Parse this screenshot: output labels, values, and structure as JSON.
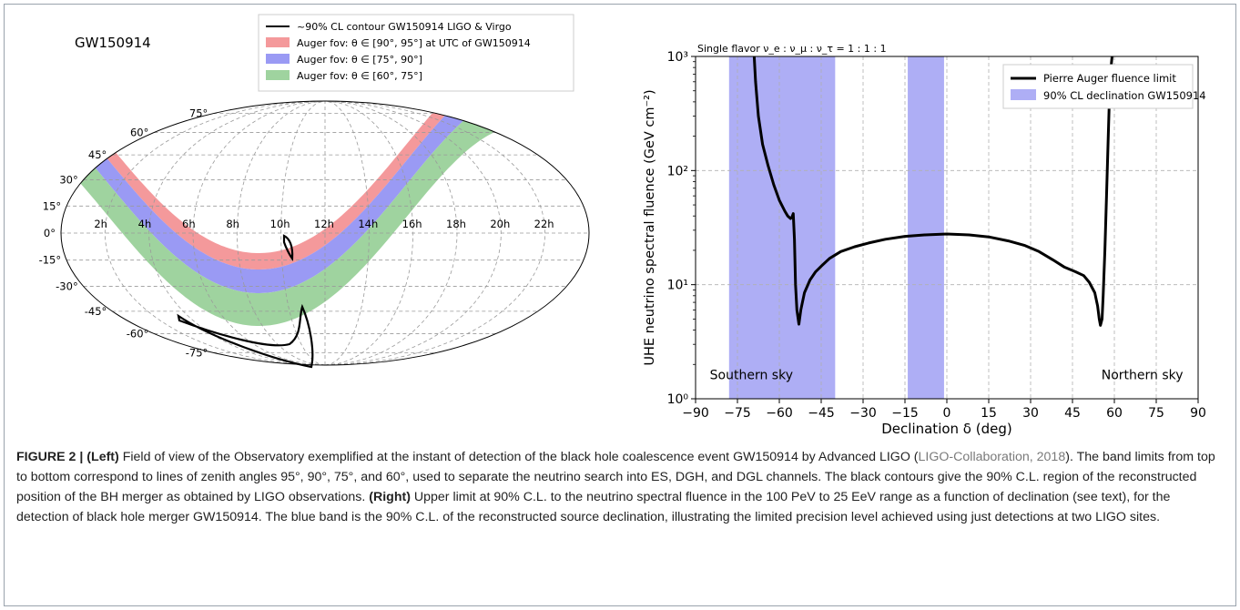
{
  "left": {
    "title": "GW150914",
    "legend": [
      {
        "label": "~90% CL contour GW150914 LIGO & Virgo",
        "color": "#000000",
        "kind": "line"
      },
      {
        "label": "Auger fov: θ ∈ [90°, 95°] at UTC of GW150914",
        "color": "#f4999b",
        "kind": "patch"
      },
      {
        "label": "Auger fov: θ ∈ [75°, 90°]",
        "color": "#9a9af4",
        "kind": "patch"
      },
      {
        "label": "Auger fov: θ ∈ [60°, 75°]",
        "color": "#9fd39f",
        "kind": "patch"
      }
    ],
    "ra_labels": [
      "2h",
      "4h",
      "6h",
      "8h",
      "10h",
      "12h",
      "14h",
      "16h",
      "18h",
      "20h",
      "22h"
    ],
    "dec_labels": [
      {
        "deg": 75,
        "label": "75°"
      },
      {
        "deg": 60,
        "label": "60°"
      },
      {
        "deg": 45,
        "label": "45°"
      },
      {
        "deg": 30,
        "label": "30°"
      },
      {
        "deg": 15,
        "label": "15°"
      },
      {
        "deg": 0,
        "label": "0°"
      },
      {
        "deg": -15,
        "label": "-15°"
      },
      {
        "deg": -30,
        "label": "-30°"
      },
      {
        "deg": -45,
        "label": "-45°"
      },
      {
        "deg": -60,
        "label": "-60°"
      },
      {
        "deg": -75,
        "label": "-75°"
      }
    ]
  },
  "chart_data": {
    "type": "line",
    "title": "Single flavor ν_e : ν_μ : ν_τ = 1 : 1 : 1",
    "xlabel": "Declination δ (deg)",
    "ylabel": "UHE neutrino spectral fluence (GeV cm⁻²)",
    "xlim": [
      -90,
      90
    ],
    "ylim": [
      1,
      1000
    ],
    "yscale": "log",
    "grid": true,
    "legend_position": "top-right",
    "xticks": [
      -90,
      -75,
      -60,
      -45,
      -30,
      -15,
      0,
      15,
      30,
      45,
      60,
      75,
      90
    ],
    "yticks": [
      {
        "value": 1,
        "label": "10⁰"
      },
      {
        "value": 10,
        "label": "10¹"
      },
      {
        "value": 100,
        "label": "10²"
      },
      {
        "value": 1000,
        "label": "10³"
      }
    ],
    "series": [
      {
        "name": "Pierre Auger fluence limit",
        "color": "#000000",
        "x": [
          -69,
          -68.5,
          -67.5,
          -66,
          -64,
          -62,
          -60,
          -58,
          -57,
          -56,
          -55.5,
          -55,
          -54.6,
          -54.2,
          -53.7,
          -53,
          -52.3,
          -51,
          -49,
          -47,
          -45,
          -42,
          -38,
          -33,
          -28,
          -22,
          -15,
          -8,
          0,
          8,
          15,
          22,
          28,
          33,
          38,
          42,
          46,
          49,
          51,
          53,
          54,
          54.6,
          55,
          55.6,
          56,
          56.6,
          57.2,
          57.8,
          58.3,
          58.8,
          59.2
        ],
        "y": [
          1000,
          600,
          300,
          170,
          110,
          75,
          55,
          44,
          40,
          38,
          39,
          42,
          25,
          10,
          6,
          4.5,
          6,
          8.5,
          11,
          13,
          14.5,
          17,
          19.5,
          21.5,
          23.2,
          25,
          26.5,
          27.3,
          27.8,
          27.3,
          26.2,
          24.2,
          22,
          19.5,
          16.5,
          14.3,
          13,
          12,
          10.5,
          8.5,
          6.5,
          5,
          4.4,
          5,
          8,
          20,
          60,
          200,
          500,
          800,
          1000
        ]
      }
    ],
    "bands": [
      {
        "name": "90% CL declination GW150914",
        "x0": -78,
        "x1": -40,
        "color": "#aeaef5"
      },
      {
        "name": "",
        "x0": -14,
        "x1": -1,
        "color": "#aeaef5"
      }
    ],
    "annotations": [
      {
        "text": "Southern sky",
        "x": -70,
        "y": 1.6
      },
      {
        "text": "Northern sky",
        "x": 70,
        "y": 1.6
      }
    ]
  },
  "caption": {
    "label": "FIGURE 2 |",
    "left_tag": "(Left)",
    "text1": "Field of view of the Observatory exemplified at the instant of detection of the black hole coalescence event GW150914 by Advanced LIGO (",
    "ref": "LIGO-Collaboration, 2018",
    "text2": "). The band limits from top to bottom correspond to lines of zenith angles 95°, 90°, 75°, and 60°, used to separate the neutrino search into ES, DGH, and DGL channels. The black contours give the 90% C.L. region of the reconstructed position of the BH merger as obtained by LIGO observations.",
    "right_tag": "(Right)",
    "text3": "Upper limit at 90% C.L. to the neutrino spectral fluence in the 100 PeV to 25 EeV range as a function of declination (see text), for the detection of black hole merger GW150914. The blue band is the 90% C.L. of the reconstructed source declination, illustrating the limited precision level achieved using just detections at two LIGO sites."
  }
}
